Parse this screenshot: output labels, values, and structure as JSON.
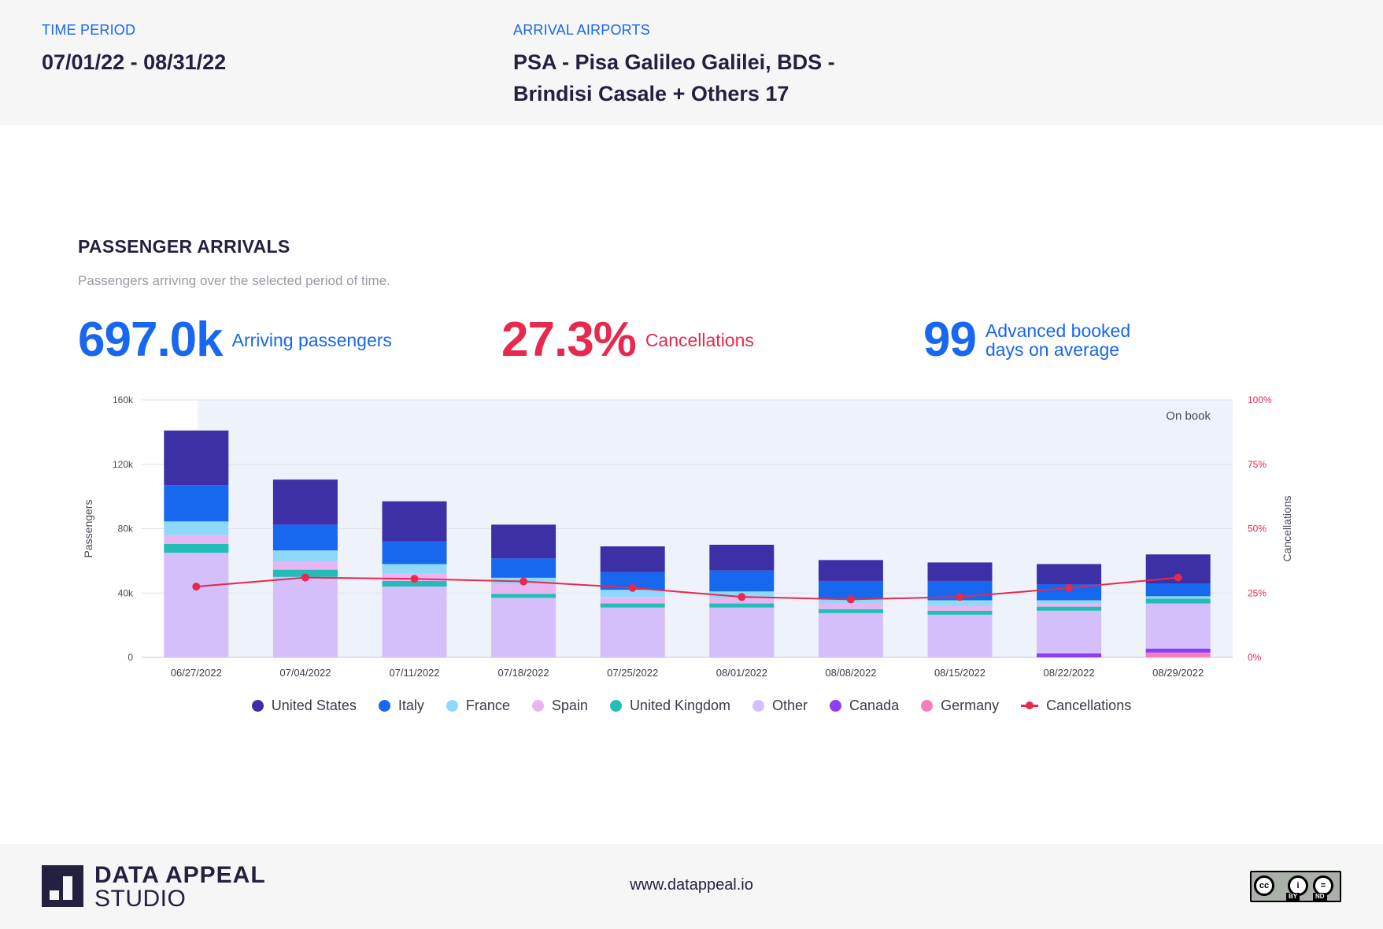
{
  "header": {
    "time_period_label": "TIME PERIOD",
    "time_period_value": "07/01/22 - 08/31/22",
    "airports_label": "ARRIVAL AIRPORTS",
    "airports_value": "PSA - Pisa Galileo Galilei, BDS - Brindisi Casale + Others 17"
  },
  "section": {
    "title": "PASSENGER ARRIVALS",
    "subtitle": "Passengers arriving over the selected period of time."
  },
  "kpis": {
    "passengers_value": "697.0k",
    "passengers_label": "Arriving passengers",
    "cancellations_value": "27.3%",
    "cancellations_label": "Cancellations",
    "days_value": "99",
    "days_label": "Advanced booked days on average"
  },
  "colors": {
    "United States": "#3d2fa6",
    "Italy": "#1767ef",
    "France": "#8ed8f8",
    "Spain": "#e8b5f3",
    "United Kingdom": "#22bdb6",
    "Other": "#d5bffb",
    "Canada": "#8d3df2",
    "Germany": "#f57ebd",
    "Cancellations": "#e8294f",
    "on_book_shade": "#eef2fb"
  },
  "chart_data": {
    "type": "bar",
    "stacked": true,
    "categories": [
      "06/27/2022",
      "07/04/2022",
      "07/11/2022",
      "07/18/2022",
      "07/25/2022",
      "08/01/2022",
      "08/08/2022",
      "08/15/2022",
      "08/22/2022",
      "08/29/2022"
    ],
    "series": [
      {
        "name": "Germany",
        "values": [
          0,
          0,
          0,
          0,
          0,
          0,
          0,
          0,
          0,
          3000
        ]
      },
      {
        "name": "Canada",
        "values": [
          0,
          0,
          0,
          0,
          0,
          0,
          0,
          0,
          2500,
          2500
        ]
      },
      {
        "name": "Other",
        "values": [
          65000,
          50000,
          44000,
          37000,
          31000,
          31000,
          27500,
          26500,
          26500,
          28000
        ]
      },
      {
        "name": "United Kingdom",
        "values": [
          5500,
          4500,
          3500,
          2500,
          2500,
          2500,
          2500,
          2500,
          2500,
          3000
        ]
      },
      {
        "name": "Spain",
        "values": [
          5500,
          5000,
          4500,
          6000,
          4000,
          3500,
          3500,
          3000,
          2000,
          0
        ]
      },
      {
        "name": "France",
        "values": [
          8500,
          7000,
          6000,
          4000,
          4500,
          4000,
          3000,
          3500,
          2000,
          1500
        ]
      },
      {
        "name": "Italy",
        "values": [
          22500,
          16000,
          14000,
          12000,
          11000,
          13000,
          11000,
          12000,
          10000,
          8000
        ]
      },
      {
        "name": "United States",
        "values": [
          34000,
          28000,
          25000,
          21000,
          16000,
          16000,
          13000,
          11500,
          12500,
          18000
        ]
      }
    ],
    "line_series": {
      "name": "Cancellations",
      "axis": "right",
      "values": [
        27.5,
        31,
        30.5,
        29.5,
        27,
        23.5,
        22.5,
        23.5,
        27,
        31
      ]
    },
    "ylabel": "Passengers",
    "ylim": [
      0,
      160000
    ],
    "yticks": [
      "0",
      "40k",
      "80k",
      "120k",
      "160k"
    ],
    "y2label": "Cancellations",
    "y2lim": [
      0,
      100
    ],
    "y2ticks": [
      "0%",
      "25%",
      "50%",
      "75%",
      "100%"
    ],
    "annotation": "On book",
    "legend": [
      "United States",
      "Italy",
      "France",
      "Spain",
      "United Kingdom",
      "Other",
      "Canada",
      "Germany",
      "Cancellations"
    ],
    "legend_position": "bottom"
  },
  "footer": {
    "logo_line1": "DATA APPEAL",
    "logo_line2": "STUDIO",
    "website": "www.datappeal.io",
    "license_by": "BY",
    "license_nd": "ND"
  }
}
